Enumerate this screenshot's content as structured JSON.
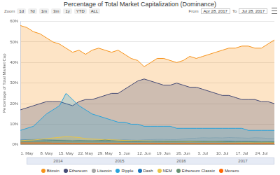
{
  "chart_data": {
    "type": "area",
    "title": "Percentage of Total Market Capitalization (Dominance)",
    "y_label": "Percentage of Total Market Cap",
    "categories": [
      null,
      "1. May",
      null,
      null,
      "8. May",
      null,
      null,
      "15. May",
      null,
      null,
      "22. May",
      null,
      null,
      "29. May",
      null,
      null,
      "5. Jun",
      null,
      null,
      "12. Jun",
      null,
      null,
      "19. Jun",
      null,
      null,
      "26. Jun",
      null,
      null,
      "3. Jul",
      null,
      null,
      "10. Jul",
      null,
      null,
      "17. Jul",
      null,
      null,
      "24. Jul",
      null,
      null
    ],
    "series": [
      {
        "name": "Bitcoin",
        "color": "#f7931a",
        "values": [
          58,
          57,
          55,
          54,
          52,
          50,
          49,
          47,
          45,
          46,
          44,
          46,
          47,
          46,
          45,
          46,
          44,
          42,
          41,
          38,
          40,
          42,
          42,
          41,
          40,
          41,
          43,
          42,
          43,
          44,
          45,
          46,
          47,
          47,
          48,
          48,
          47,
          47,
          49,
          51
        ]
      },
      {
        "name": "Ethereum",
        "color": "#454a75",
        "values": [
          17,
          18,
          19,
          20,
          21,
          21,
          21,
          20,
          19,
          21,
          22,
          22,
          23,
          24,
          25,
          25,
          27,
          29,
          31,
          32,
          31,
          30,
          29,
          29,
          30,
          29,
          28,
          28,
          27,
          26,
          25,
          24,
          24,
          23,
          22,
          22,
          22,
          21,
          21,
          20
        ]
      },
      {
        "name": "Litecoin",
        "color": "#a6a6a6",
        "values": [
          2.5,
          2.5,
          2.6,
          2.8,
          2.6,
          2.5,
          2.4,
          2.3,
          2.2,
          2.2,
          2.0,
          2.0,
          2.2,
          2.4,
          2.5,
          2.4,
          2.5,
          2.3,
          2.2,
          2.4,
          2.5,
          2.6,
          2.6,
          2.5,
          2.5,
          2.8,
          3.1,
          3.2,
          3.4,
          3.3,
          3.4,
          3.3,
          3.5,
          3.4,
          3.3,
          3.2,
          3.4,
          3.3,
          3.1,
          3.0
        ]
      },
      {
        "name": "Ripple",
        "color": "#27a2db",
        "values": [
          7,
          8,
          9,
          12,
          15,
          17,
          19,
          25,
          22,
          19,
          17,
          15,
          14,
          13,
          12,
          11,
          11,
          10,
          10,
          9,
          9,
          9,
          9,
          9,
          8,
          8,
          8,
          8,
          8,
          8,
          8,
          8,
          8,
          8,
          8,
          7,
          7,
          7,
          7,
          7
        ]
      },
      {
        "name": "Dash",
        "color": "#1c75bc",
        "values": [
          2.2,
          2.3,
          2.3,
          2.4,
          2.3,
          2.2,
          2.1,
          2.0,
          1.9,
          2.0,
          1.9,
          1.9,
          1.8,
          1.7,
          1.8,
          1.8,
          1.7,
          1.6,
          1.6,
          1.7,
          1.8,
          1.7,
          1.7,
          1.6,
          1.6,
          1.7,
          1.8,
          1.7,
          1.7,
          1.6,
          1.6,
          1.7,
          1.7,
          1.6,
          1.6,
          1.6,
          1.6,
          1.5,
          1.5,
          1.5
        ]
      },
      {
        "name": "NEM",
        "color": "#e8c547",
        "values": [
          2.0,
          2.2,
          2.3,
          2.6,
          3.0,
          3.3,
          3.6,
          4.0,
          3.8,
          3.5,
          3.0,
          2.8,
          2.6,
          2.5,
          2.4,
          2.3,
          2.1,
          2.0,
          2.0,
          1.9,
          1.9,
          1.8,
          1.8,
          1.7,
          1.7,
          1.6,
          1.6,
          1.6,
          1.5,
          1.5,
          1.5,
          1.5,
          1.4,
          1.4,
          1.3,
          1.3,
          1.3,
          1.3,
          1.2,
          1.2
        ]
      },
      {
        "name": "Ethereum Classic",
        "color": "#669073",
        "values": [
          1.4,
          1.5,
          1.6,
          1.7,
          1.8,
          2.0,
          2.0,
          1.9,
          1.8,
          1.9,
          1.9,
          1.8,
          2.0,
          2.3,
          2.0,
          1.8,
          1.7,
          1.7,
          1.8,
          1.7,
          1.8,
          1.8,
          1.7,
          1.7,
          1.7,
          1.7,
          1.8,
          1.7,
          1.6,
          1.6,
          1.6,
          1.6,
          1.5,
          1.5,
          1.5,
          1.5,
          1.4,
          1.4,
          1.4,
          1.3
        ]
      },
      {
        "name": "Monero",
        "color": "#ff6600",
        "values": [
          0.9,
          0.9,
          0.9,
          0.9,
          0.9,
          0.8,
          0.8,
          0.8,
          0.7,
          0.7,
          0.7,
          0.7,
          0.7,
          0.7,
          0.7,
          0.7,
          0.7,
          0.7,
          0.7,
          0.7,
          0.7,
          0.7,
          0.7,
          0.6,
          0.6,
          0.6,
          0.6,
          0.6,
          0.6,
          0.6,
          0.6,
          0.6,
          0.6,
          0.6,
          0.6,
          0.6,
          0.6,
          0.6,
          0.6,
          0.6
        ]
      }
    ],
    "ylim": [
      0,
      60
    ],
    "yticks": [
      {
        "value": 0,
        "label": "0%"
      },
      {
        "value": 10,
        "label": "10%"
      },
      {
        "value": 20,
        "label": "20%"
      },
      {
        "value": 30,
        "label": "30%"
      },
      {
        "value": 40,
        "label": "40%"
      },
      {
        "value": 50,
        "label": "50%"
      },
      {
        "value": 60,
        "label": "60%"
      }
    ],
    "grid": true,
    "stacked": false,
    "legend": "bottom"
  },
  "toolbar": {
    "zoom_label": "Zoom",
    "buttons": [
      "1d",
      "7d",
      "1m",
      "3m",
      "1y",
      "YTD",
      "ALL"
    ],
    "from_label": "From",
    "from": "Apr 28, 2017",
    "to_label": "To",
    "to": "Jul 28, 2017"
  },
  "navigator": {
    "labels": [
      "2014",
      "2015",
      "2016",
      "2017"
    ]
  }
}
